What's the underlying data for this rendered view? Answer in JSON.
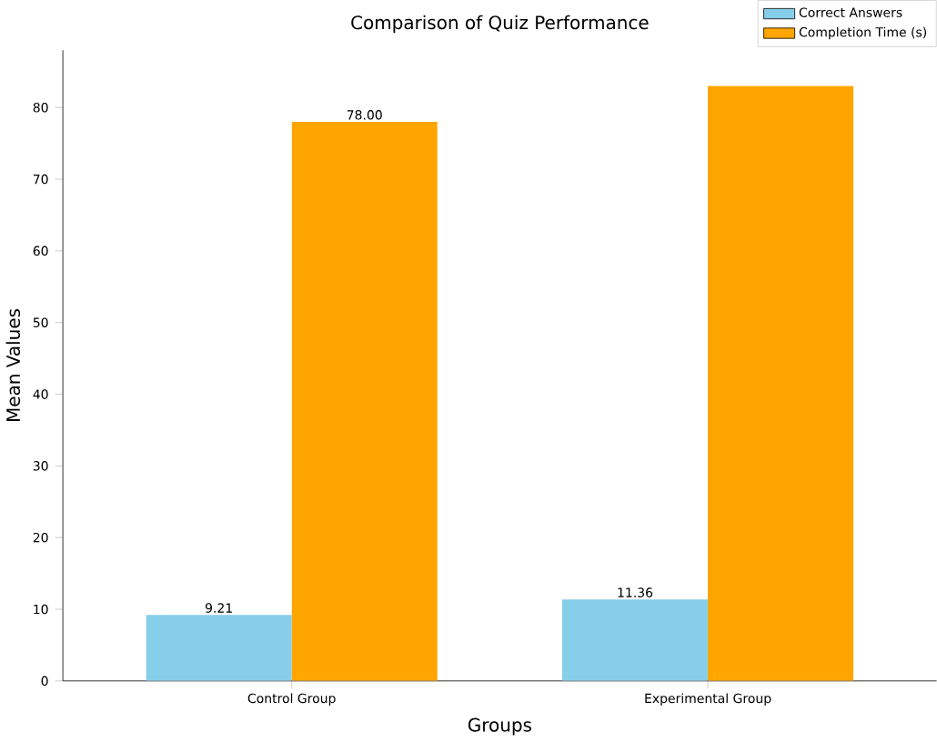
{
  "chart_data": {
    "type": "bar",
    "title": "Comparison of Quiz Performance",
    "xlabel": "Groups",
    "ylabel": "Mean Values",
    "categories": [
      "Control Group",
      "Experimental Group"
    ],
    "series": [
      {
        "name": "Correct Answers",
        "color": "#87ceeb",
        "values": [
          9.21,
          11.36
        ],
        "value_labels": [
          "9.21",
          "11.36"
        ]
      },
      {
        "name": "Completion Time (s)",
        "color": "#ffa500",
        "values": [
          78.0,
          83.0
        ],
        "value_labels": [
          "78.00",
          null
        ]
      }
    ],
    "ylim": [
      0,
      88
    ],
    "yticks": [
      0,
      10,
      20,
      30,
      40,
      50,
      60,
      70,
      80
    ],
    "legend": "top right",
    "grid": false
  }
}
